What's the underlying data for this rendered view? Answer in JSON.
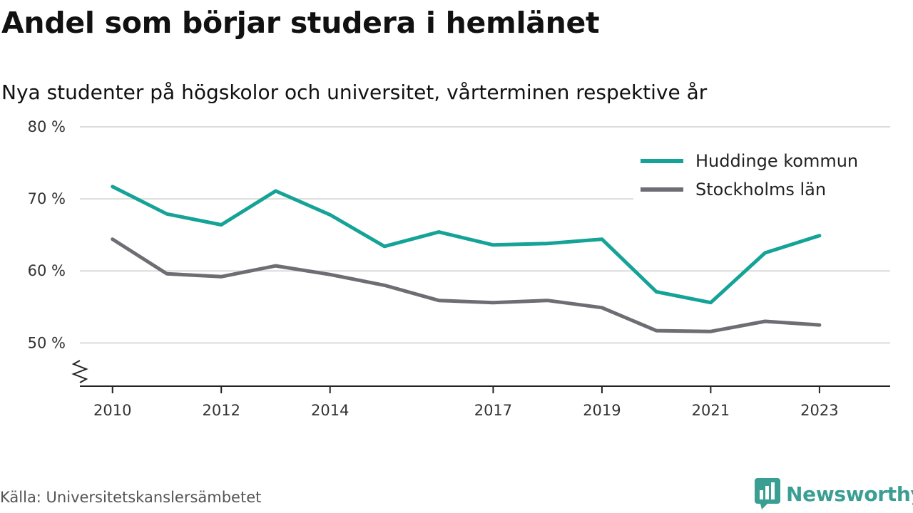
{
  "title": "Andel som börjar studera i hemlänet",
  "subtitle": "Nya studenter på högskolor och universitet, vårterminen respektive år",
  "source": "Källa: Universitetskanslersämbetet",
  "brand": {
    "name": "Newsworthy",
    "logo_icon": "bar-chart-speech-bubble-icon",
    "color": "#3a9e92"
  },
  "chart_data": {
    "type": "line",
    "x": [
      2010,
      2011,
      2012,
      2013,
      2014,
      2015,
      2016,
      2017,
      2018,
      2019,
      2020,
      2021,
      2022,
      2023
    ],
    "x_ticks": [
      2010,
      2012,
      2014,
      2017,
      2019,
      2021,
      2023
    ],
    "x_tick_labels": [
      "2010",
      "2012",
      "2014",
      "2017",
      "2019",
      "2021",
      "2023"
    ],
    "y_ticks": [
      50,
      60,
      70,
      80
    ],
    "y_tick_labels": [
      "50 %",
      "60 %",
      "70 %",
      "80 %"
    ],
    "ylim": [
      44,
      80
    ],
    "xlim": [
      2009.4,
      2024.3
    ],
    "grid": true,
    "axis_break": true,
    "legend_position": "top-right",
    "series": [
      {
        "name": "Huddinge kommun",
        "color": "#14a396",
        "values": [
          71.7,
          67.9,
          66.4,
          71.1,
          67.8,
          63.4,
          65.4,
          63.6,
          63.8,
          64.4,
          57.1,
          55.6,
          62.5,
          64.9
        ]
      },
      {
        "name": "Stockholms län",
        "color": "#6e6d73",
        "values": [
          64.4,
          59.6,
          59.2,
          60.7,
          59.5,
          58.0,
          55.9,
          55.6,
          55.9,
          54.9,
          51.7,
          51.6,
          53.0,
          52.5
        ]
      }
    ]
  }
}
